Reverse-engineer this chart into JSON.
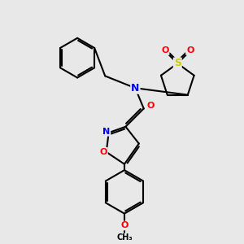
{
  "background_color": "#e8e8e8",
  "bond_color": "#000000",
  "bond_width": 1.5,
  "atom_colors": {
    "N": "#0000ff",
    "O": "#ff0000",
    "S": "#cccc00",
    "C": "#000000"
  },
  "font_size": 8,
  "figsize": [
    3.0,
    3.0
  ],
  "dpi": 100
}
